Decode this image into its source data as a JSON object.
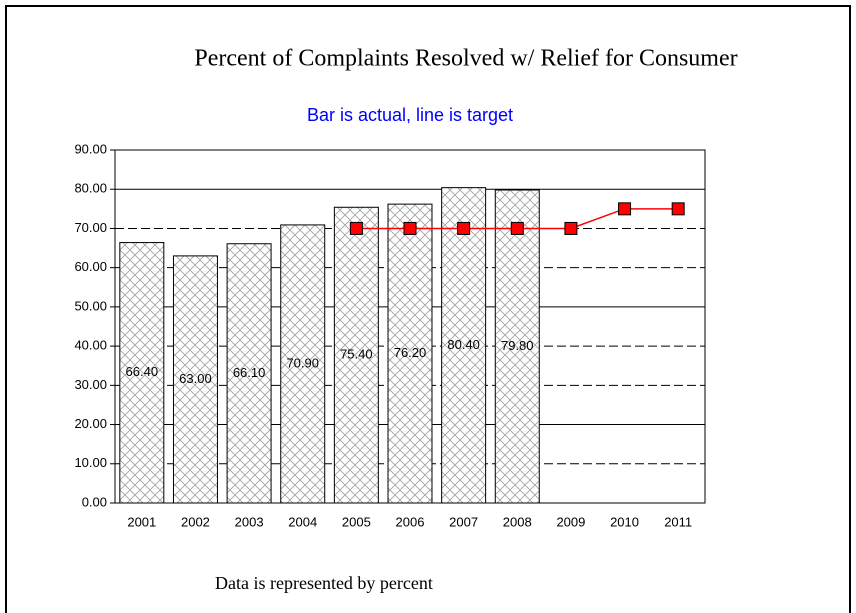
{
  "chart_data": {
    "type": "bar_line",
    "title": "Percent of Complaints Resolved w/ Relief for Consumer",
    "subtitle": "Bar is actual, line is target",
    "footer": "Data is represented by percent",
    "categories": [
      "2001",
      "2002",
      "2003",
      "2004",
      "2005",
      "2006",
      "2007",
      "2008",
      "2009",
      "2010",
      "2011"
    ],
    "series": [
      {
        "type": "bar",
        "color": "#a0a0a0",
        "values": [
          66.4,
          63.0,
          66.1,
          70.9,
          75.4,
          76.2,
          80.4,
          79.8,
          null,
          null,
          null
        ],
        "value_labels": [
          "66.40",
          "63.00",
          "66.10",
          "70.90",
          "75.40",
          "76.20",
          "80.40",
          "79.80",
          null,
          null,
          null
        ]
      },
      {
        "type": "line",
        "color": "#ff0000",
        "values": [
          null,
          null,
          null,
          null,
          70,
          70,
          70,
          70,
          70,
          75,
          75
        ]
      }
    ],
    "ylim": [
      0,
      90
    ],
    "yticks": [
      {
        "value": 0,
        "label": "0.00"
      },
      {
        "value": 10,
        "label": "10.00"
      },
      {
        "value": 20,
        "label": "20.00"
      },
      {
        "value": 30,
        "label": "30.00"
      },
      {
        "value": 40,
        "label": "40.00"
      },
      {
        "value": 50,
        "label": "50.00"
      },
      {
        "value": 60,
        "label": "60.00"
      },
      {
        "value": 70,
        "label": "70.00"
      },
      {
        "value": 80,
        "label": "80.00"
      },
      {
        "value": 90,
        "label": "90.00"
      }
    ],
    "grid": true
  }
}
